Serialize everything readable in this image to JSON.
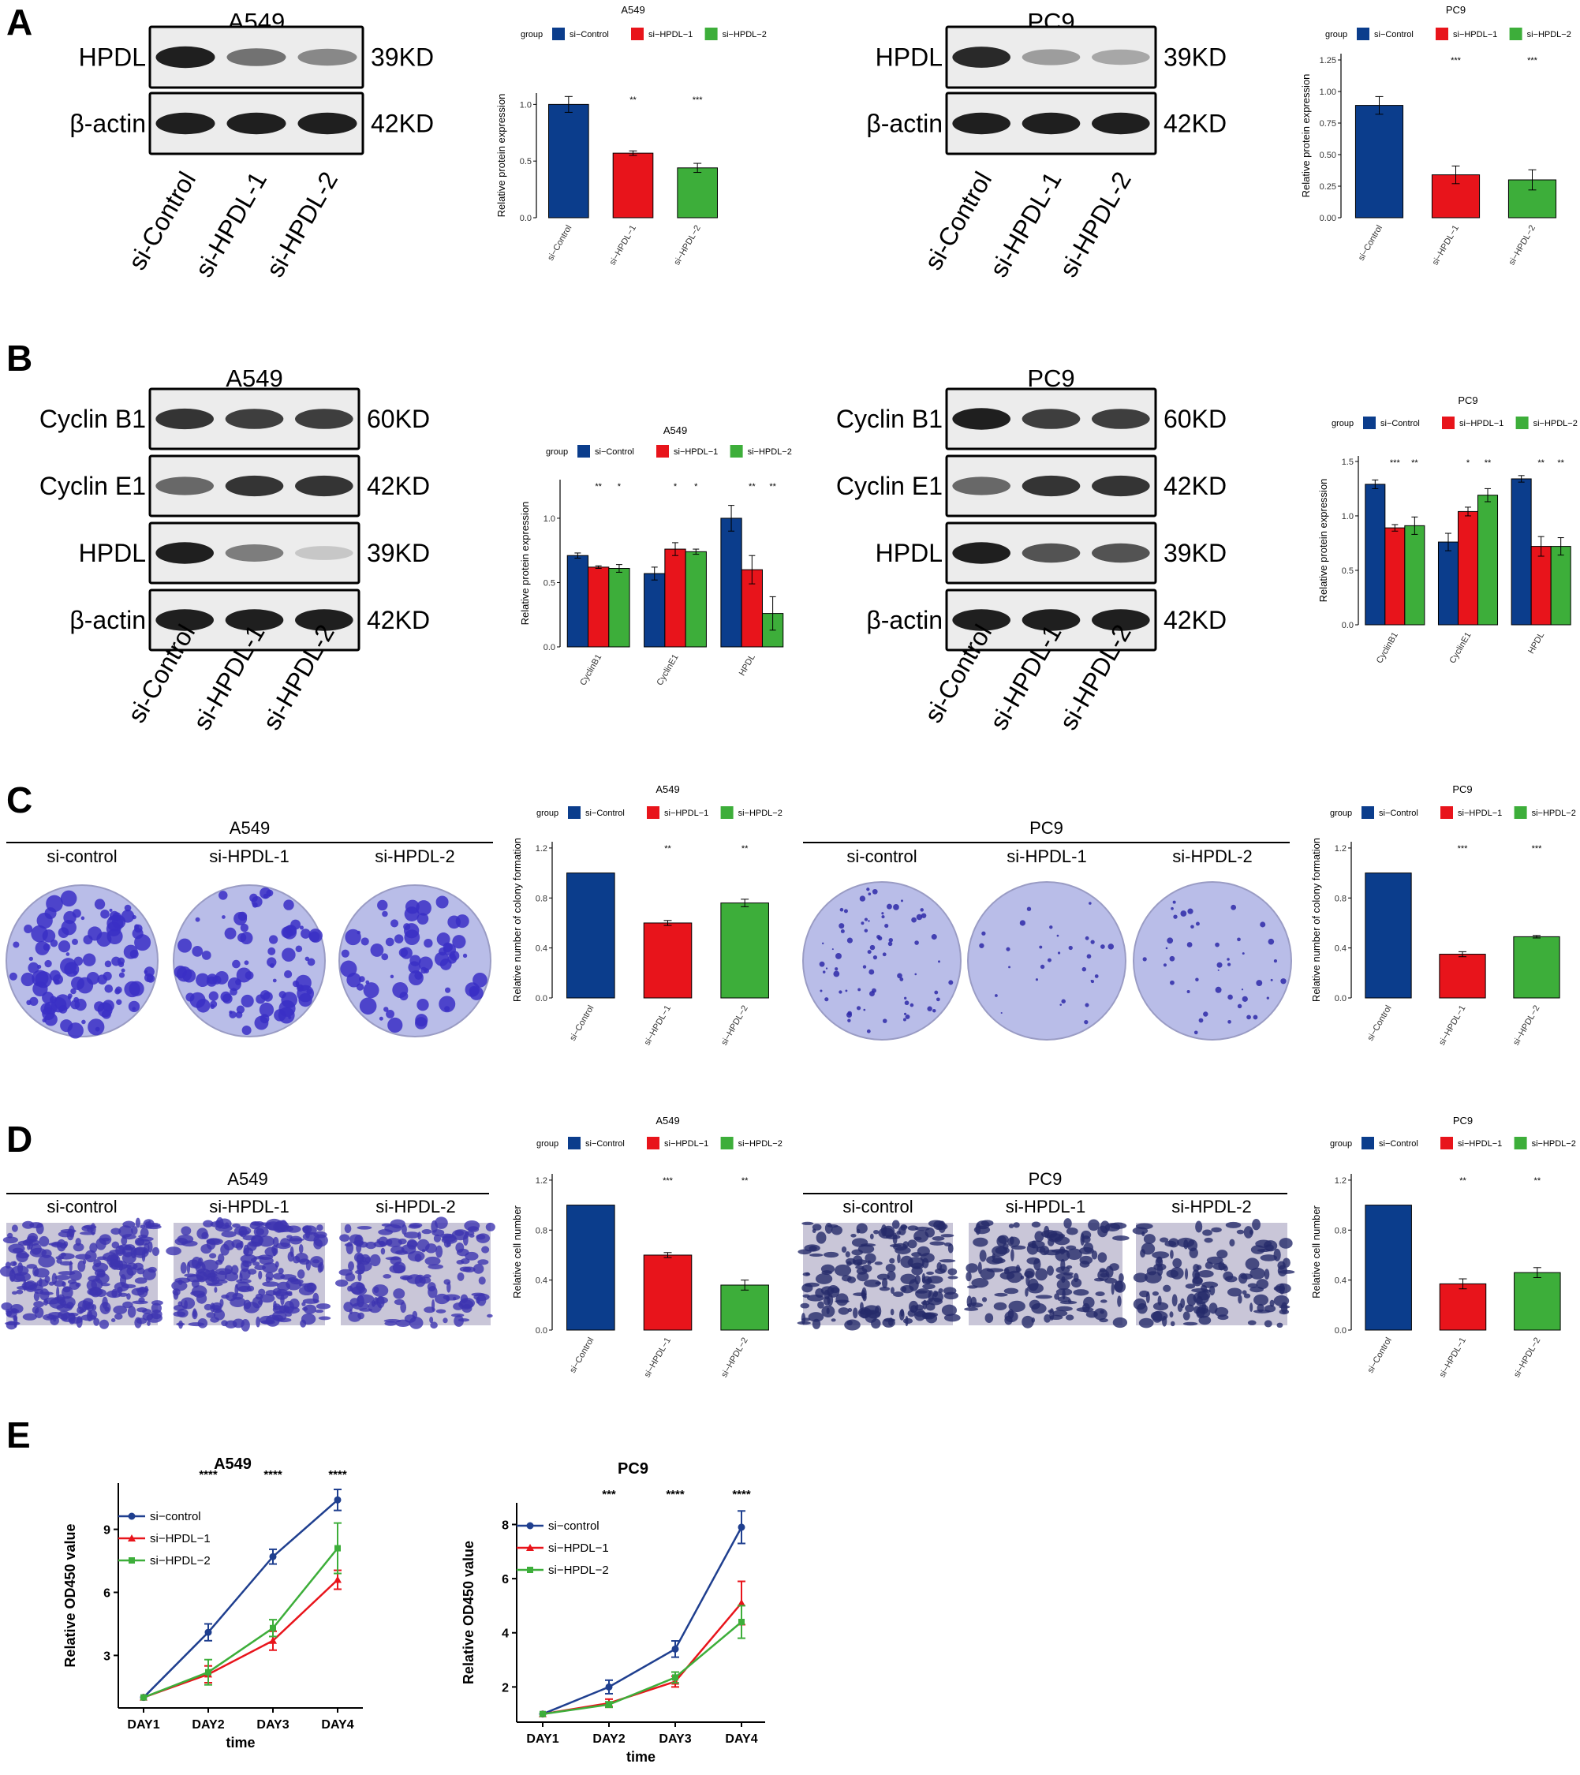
{
  "panels": {
    "A": {
      "label": "A",
      "blots": [
        {
          "title": "A549",
          "rows": [
            {
              "name": "HPDL",
              "kd": "39KD",
              "bands": [
                0.95,
                0.55,
                0.45
              ]
            },
            {
              "name": "β-actin",
              "kd": "42KD",
              "bands": [
                0.95,
                0.95,
                0.95
              ]
            }
          ],
          "lanes": [
            "si-Control",
            "si-HPDL-1",
            "si-HPDL-2"
          ]
        },
        {
          "title": "PC9",
          "rows": [
            {
              "name": "HPDL",
              "kd": "39KD",
              "bands": [
                0.9,
                0.35,
                0.3
              ]
            },
            {
              "name": "β-actin",
              "kd": "42KD",
              "bands": [
                0.95,
                0.95,
                0.95
              ]
            }
          ],
          "lanes": [
            "si-Control",
            "si-HPDL-1",
            "si-HPDL-2"
          ]
        }
      ]
    },
    "B": {
      "label": "B",
      "blots": [
        {
          "title": "A549",
          "rows": [
            {
              "name": "Cyclin B1",
              "kd": "60KD",
              "bands": [
                0.85,
                0.8,
                0.8
              ]
            },
            {
              "name": "Cyclin E1",
              "kd": "42KD",
              "bands": [
                0.6,
                0.85,
                0.85
              ]
            },
            {
              "name": "HPDL",
              "kd": "39KD",
              "bands": [
                0.95,
                0.5,
                0.15
              ]
            },
            {
              "name": "β-actin",
              "kd": "42KD",
              "bands": [
                0.95,
                0.95,
                0.95
              ]
            }
          ],
          "lanes": [
            "si-Control",
            "si-HPDL-1",
            "si-HPDL-2"
          ]
        },
        {
          "title": "PC9",
          "rows": [
            {
              "name": "Cyclin B1",
              "kd": "60KD",
              "bands": [
                0.95,
                0.8,
                0.8
              ]
            },
            {
              "name": "Cyclin E1",
              "kd": "42KD",
              "bands": [
                0.6,
                0.85,
                0.85
              ]
            },
            {
              "name": "HPDL",
              "kd": "39KD",
              "bands": [
                0.95,
                0.7,
                0.7
              ]
            },
            {
              "name": "β-actin",
              "kd": "42KD",
              "bands": [
                0.95,
                0.95,
                0.95
              ]
            }
          ],
          "lanes": [
            "si-Control",
            "si-HPDL-1",
            "si-HPDL-2"
          ]
        }
      ]
    },
    "C": {
      "label": "C",
      "images": [
        {
          "title": "A549",
          "cols": [
            "si-control",
            "si-HPDL-1",
            "si-HPDL-2"
          ]
        },
        {
          "title": "PC9",
          "cols": [
            "si-control",
            "si-HPDL-1",
            "si-HPDL-2"
          ]
        }
      ]
    },
    "D": {
      "label": "D",
      "images": [
        {
          "title": "A549",
          "cols": [
            "si-control",
            "si-HPDL-1",
            "si-HPDL-2"
          ]
        },
        {
          "title": "PC9",
          "cols": [
            "si-control",
            "si-HPDL-1",
            "si-HPDL-2"
          ]
        }
      ]
    },
    "E": {
      "label": "E"
    }
  },
  "legend": {
    "title": "group",
    "groups": [
      "si−Control",
      "si−HPDL−1",
      "si−HPDL−2"
    ],
    "colors": [
      "#0b3d8c",
      "#e8141b",
      "#3dae3a"
    ]
  },
  "chart_data": [
    {
      "id": "A-A549",
      "type": "bar",
      "title": "A549",
      "categories": [
        "si−Control",
        "si−HPDL−1",
        "si−HPDL−2"
      ],
      "values": [
        1.0,
        0.57,
        0.44
      ],
      "errors": [
        0.07,
        0.02,
        0.04
      ],
      "stars": [
        "",
        "**",
        "***"
      ],
      "ylabel": "Relative protein expression",
      "ylim": [
        0,
        1.1
      ],
      "yticks": [
        "0.0",
        "0.5",
        "1.0"
      ]
    },
    {
      "id": "A-PC9",
      "type": "bar",
      "title": "PC9",
      "categories": [
        "si−Control",
        "si−HPDL−1",
        "si−HPDL−2"
      ],
      "values": [
        0.89,
        0.34,
        0.3
      ],
      "errors": [
        0.07,
        0.07,
        0.08
      ],
      "stars": [
        "",
        "***",
        "***"
      ],
      "ylabel": "Relative protein expression",
      "ylim": [
        0,
        1.3
      ],
      "yticks": [
        "0.00",
        "0.25",
        "0.50",
        "0.75",
        "1.00",
        "1.25"
      ]
    },
    {
      "id": "B-A549",
      "type": "bar",
      "title": "A549",
      "categories": [
        "CyclinB1",
        "CyclinE1",
        "HPDL"
      ],
      "series": [
        {
          "name": "si−Control",
          "values": [
            0.71,
            0.57,
            1.0
          ],
          "errors": [
            0.02,
            0.05,
            0.1
          ]
        },
        {
          "name": "si−HPDL−1",
          "values": [
            0.62,
            0.76,
            0.6
          ],
          "errors": [
            0.01,
            0.05,
            0.11
          ]
        },
        {
          "name": "si−HPDL−2",
          "values": [
            0.61,
            0.74,
            0.26
          ],
          "errors": [
            0.03,
            0.02,
            0.13
          ]
        }
      ],
      "stars": [
        [
          "",
          "**",
          "*"
        ],
        [
          "",
          "*",
          "*"
        ],
        [
          "",
          "**",
          "**"
        ]
      ],
      "ylabel": "Relative protein expression",
      "ylim": [
        0,
        1.3
      ],
      "yticks": [
        "0.0",
        "0.5",
        "1.0"
      ]
    },
    {
      "id": "B-PC9",
      "type": "bar",
      "title": "PC9",
      "categories": [
        "CyclinB1",
        "CyclinE1",
        "HPDL"
      ],
      "series": [
        {
          "name": "si−Control",
          "values": [
            1.29,
            0.76,
            1.34
          ],
          "errors": [
            0.04,
            0.08,
            0.03
          ]
        },
        {
          "name": "si−HPDL−1",
          "values": [
            0.89,
            1.04,
            0.72
          ],
          "errors": [
            0.03,
            0.04,
            0.09
          ]
        },
        {
          "name": "si−HPDL−2",
          "values": [
            0.91,
            1.19,
            0.72
          ],
          "errors": [
            0.08,
            0.06,
            0.08
          ]
        }
      ],
      "stars": [
        [
          "",
          "***",
          "**"
        ],
        [
          "",
          "*",
          "**"
        ],
        [
          "",
          "**",
          "**"
        ]
      ],
      "ylabel": "Relative protein expression",
      "ylim": [
        0,
        1.55
      ],
      "yticks": [
        "0.0",
        "0.5",
        "1.0",
        "1.5"
      ]
    },
    {
      "id": "C-A549",
      "type": "bar",
      "title": "A549",
      "categories": [
        "si−Control",
        "si−HPDL−1",
        "si−HPDL−2"
      ],
      "values": [
        1.0,
        0.6,
        0.76
      ],
      "errors": [
        0,
        0.02,
        0.03
      ],
      "stars": [
        "",
        "**",
        "**"
      ],
      "ylabel": "Relative number of colony formation",
      "ylim": [
        0,
        1.25
      ],
      "yticks": [
        "0.0",
        "0.4",
        "0.8",
        "1.2"
      ]
    },
    {
      "id": "C-PC9",
      "type": "bar",
      "title": "PC9",
      "categories": [
        "si−Control",
        "si−HPDL−1",
        "si−HPDL−2"
      ],
      "values": [
        1.0,
        0.35,
        0.49
      ],
      "errors": [
        0,
        0.02,
        0.01
      ],
      "stars": [
        "",
        "***",
        "***"
      ],
      "ylabel": "Relative number of colony formation",
      "ylim": [
        0,
        1.25
      ],
      "yticks": [
        "0.0",
        "0.4",
        "0.8",
        "1.2"
      ]
    },
    {
      "id": "D-A549",
      "type": "bar",
      "title": "A549",
      "categories": [
        "si−Control",
        "si−HPDL−1",
        "si−HPDL−2"
      ],
      "values": [
        1.0,
        0.6,
        0.36
      ],
      "errors": [
        0,
        0.02,
        0.04
      ],
      "stars": [
        "",
        "***",
        "**"
      ],
      "ylabel": "Relative cell number",
      "ylim": [
        0,
        1.25
      ],
      "yticks": [
        "0.0",
        "0.4",
        "0.8",
        "1.2"
      ]
    },
    {
      "id": "D-PC9",
      "type": "bar",
      "title": "PC9",
      "categories": [
        "si−Control",
        "si−HPDL−1",
        "si−HPDL−2"
      ],
      "values": [
        1.0,
        0.37,
        0.46
      ],
      "errors": [
        0,
        0.04,
        0.04
      ],
      "stars": [
        "",
        "**",
        "**"
      ],
      "ylabel": "Relative cell number",
      "ylim": [
        0,
        1.25
      ],
      "yticks": [
        "0.0",
        "0.4",
        "0.8",
        "1.2"
      ]
    },
    {
      "id": "E-A549",
      "type": "line",
      "title": "A549",
      "x": [
        "DAY1",
        "DAY2",
        "DAY3",
        "DAY4"
      ],
      "series": [
        {
          "name": "si−control",
          "values": [
            1.0,
            4.1,
            7.7,
            10.4
          ],
          "errors": [
            0,
            0.4,
            0.35,
            0.5
          ],
          "color": "#1f3f8f",
          "marker": "circle"
        },
        {
          "name": "si−HPDL−1",
          "values": [
            1.0,
            2.1,
            3.7,
            6.6
          ],
          "errors": [
            0,
            0.4,
            0.45,
            0.45
          ],
          "color": "#e8141b",
          "marker": "triangle"
        },
        {
          "name": "si−HPDL−2",
          "values": [
            1.0,
            2.2,
            4.3,
            8.1
          ],
          "errors": [
            0,
            0.6,
            0.4,
            1.2
          ],
          "color": "#3dae3a",
          "marker": "square"
        }
      ],
      "stars": [
        "",
        "****",
        "****",
        "****"
      ],
      "xlabel": "time",
      "ylabel": "Relative OD450 value",
      "ylim": [
        0.5,
        11.2
      ],
      "yticks": [
        3,
        6,
        9
      ]
    },
    {
      "id": "E-PC9",
      "type": "line",
      "title": "PC9",
      "x": [
        "DAY1",
        "DAY2",
        "DAY3",
        "DAY4"
      ],
      "series": [
        {
          "name": "si−control",
          "values": [
            1.0,
            2.0,
            3.4,
            7.9
          ],
          "errors": [
            0,
            0.25,
            0.3,
            0.6
          ],
          "color": "#1f3f8f",
          "marker": "circle"
        },
        {
          "name": "si−HPDL−1",
          "values": [
            1.0,
            1.4,
            2.2,
            5.1
          ],
          "errors": [
            0,
            0.15,
            0.2,
            0.8
          ],
          "color": "#e8141b",
          "marker": "triangle"
        },
        {
          "name": "si−HPDL−2",
          "values": [
            1.0,
            1.35,
            2.35,
            4.4
          ],
          "errors": [
            0,
            0.1,
            0.2,
            0.6
          ],
          "color": "#3dae3a",
          "marker": "square"
        }
      ],
      "stars": [
        "",
        "***",
        "****",
        "****"
      ],
      "xlabel": "time",
      "ylabel": "Relative OD450 value",
      "ylim": [
        0.7,
        8.8
      ],
      "yticks": [
        2,
        4,
        6,
        8
      ]
    }
  ]
}
